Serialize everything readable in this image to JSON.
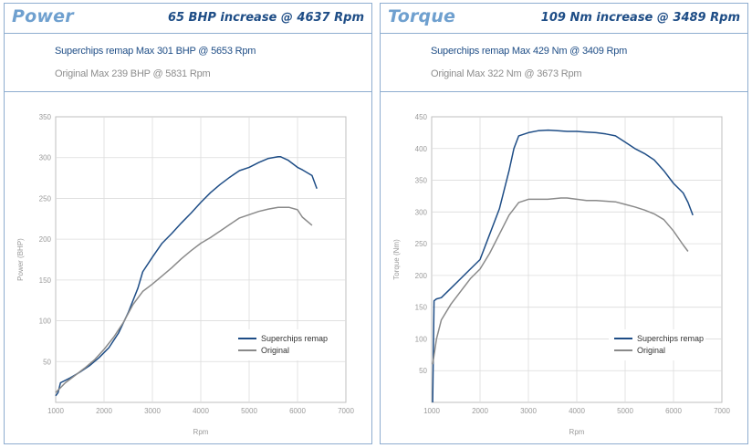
{
  "colors": {
    "remap": "#1e4d86",
    "original": "#8a8a8a",
    "title": "#6fa0cf",
    "border": "#8eadd0"
  },
  "power": {
    "title": "Power",
    "increase": "65 BHP increase @ 4637 Rpm",
    "remap_summary": "Superchips remap Max 301 BHP @ 5653 Rpm",
    "original_summary": "Original Max 239 BHP @ 5831 Rpm"
  },
  "torque": {
    "title": "Torque",
    "increase": "109 Nm increase @ 3489 Rpm",
    "remap_summary": "Superchips remap Max 429 Nm @ 3409 Rpm",
    "original_summary": "Original Max 322 Nm @ 3673 Rpm"
  },
  "chart_data": [
    {
      "type": "line",
      "title": "",
      "xlabel": "Rpm",
      "ylabel": "Power (BHP)",
      "xlim": [
        1000,
        7000
      ],
      "ylim": [
        0,
        350
      ],
      "xticks": [
        "1000",
        "2000",
        "3000",
        "4000",
        "5000",
        "6000",
        "7000"
      ],
      "yticks": [
        "50",
        "100",
        "150",
        "200",
        "250",
        "300",
        "350"
      ],
      "grid": true,
      "legend_position": "bottom-right",
      "series": [
        {
          "name": "Superchips remap",
          "x": [
            1000,
            1050,
            1100,
            1300,
            1500,
            1700,
            1900,
            2100,
            2300,
            2500,
            2700,
            2800,
            3000,
            3200,
            3400,
            3600,
            3800,
            4000,
            4200,
            4400,
            4600,
            4800,
            5000,
            5200,
            5400,
            5600,
            5650,
            5800,
            6000,
            6100,
            6300,
            6400
          ],
          "y": [
            8,
            12,
            24,
            30,
            37,
            45,
            55,
            67,
            85,
            110,
            140,
            160,
            178,
            195,
            207,
            220,
            232,
            245,
            257,
            267,
            276,
            284,
            288,
            294,
            299,
            301,
            301,
            297,
            288,
            285,
            278,
            262
          ]
        },
        {
          "name": "Original",
          "x": [
            1000,
            1200,
            1400,
            1600,
            1800,
            2000,
            2200,
            2400,
            2600,
            2800,
            3000,
            3200,
            3400,
            3600,
            3800,
            4000,
            4200,
            4400,
            4600,
            4800,
            5000,
            5200,
            5400,
            5600,
            5831,
            6000,
            6100,
            6300
          ],
          "y": [
            12,
            24,
            33,
            42,
            52,
            65,
            80,
            98,
            120,
            136,
            145,
            155,
            165,
            176,
            186,
            195,
            202,
            210,
            218,
            226,
            230,
            234,
            237,
            239,
            239,
            236,
            227,
            217
          ]
        }
      ]
    },
    {
      "type": "line",
      "title": "",
      "xlabel": "Rpm",
      "ylabel": "Torque (Nm)",
      "xlim": [
        1000,
        7000
      ],
      "ylim": [
        0,
        450
      ],
      "xticks": [
        "1000",
        "2000",
        "3000",
        "4000",
        "5000",
        "6000",
        "7000"
      ],
      "yticks": [
        "50",
        "100",
        "150",
        "200",
        "250",
        "300",
        "350",
        "400",
        "450"
      ],
      "grid": true,
      "legend_position": "bottom-right",
      "series": [
        {
          "name": "Superchips remap",
          "x": [
            1020,
            1050,
            1100,
            1200,
            1400,
            1600,
            1800,
            2000,
            2200,
            2400,
            2600,
            2700,
            2800,
            3000,
            3200,
            3409,
            3600,
            3800,
            4000,
            4200,
            4400,
            4600,
            4800,
            5000,
            5200,
            5400,
            5600,
            5800,
            6000,
            6200,
            6300,
            6400
          ],
          "y": [
            0,
            160,
            163,
            165,
            180,
            195,
            210,
            225,
            265,
            305,
            365,
            400,
            420,
            425,
            428,
            429,
            428,
            427,
            427,
            426,
            425,
            423,
            420,
            410,
            400,
            392,
            382,
            365,
            345,
            330,
            315,
            295
          ]
        },
        {
          "name": "Original",
          "x": [
            1020,
            1100,
            1200,
            1400,
            1600,
            1800,
            2000,
            2200,
            2400,
            2600,
            2800,
            3000,
            3200,
            3400,
            3673,
            3800,
            4000,
            4200,
            4400,
            4600,
            4800,
            5000,
            5200,
            5400,
            5600,
            5800,
            6000,
            6200,
            6300
          ],
          "y": [
            60,
            100,
            130,
            155,
            175,
            195,
            210,
            235,
            265,
            295,
            315,
            320,
            320,
            320,
            322,
            322,
            320,
            318,
            318,
            317,
            316,
            312,
            308,
            303,
            297,
            288,
            270,
            248,
            238
          ]
        }
      ]
    }
  ]
}
